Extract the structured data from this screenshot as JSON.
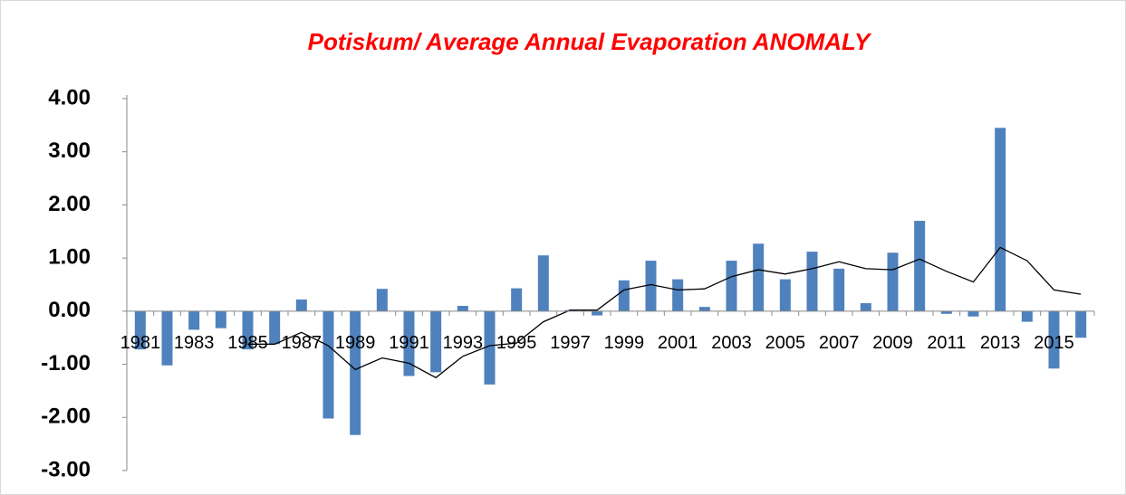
{
  "chart_data": {
    "type": "bar",
    "title": "Potiskum/ Average Annual Evaporation  ANOMALY",
    "categories": [
      "1981",
      null,
      "1983",
      null,
      "1985",
      null,
      "1987",
      null,
      "1989",
      null,
      "1991",
      null,
      "1993",
      null,
      "1995",
      null,
      "1997",
      null,
      "1999",
      null,
      "2001",
      null,
      "2003",
      null,
      "2005",
      null,
      "2007",
      null,
      "2009",
      null,
      "2011",
      null,
      "2013",
      null,
      "2015",
      null
    ],
    "series": [
      {
        "type": "bar",
        "color": "#4f81bd",
        "values": [
          -0.72,
          -1.02,
          -0.35,
          -0.32,
          -0.72,
          -0.62,
          0.22,
          -2.02,
          -2.33,
          0.42,
          -1.22,
          -1.15,
          0.1,
          -1.38,
          0.43,
          1.05,
          0.02,
          -0.08,
          0.58,
          0.95,
          0.6,
          0.08,
          0.95,
          1.27,
          0.6,
          1.12,
          0.8,
          0.15,
          1.1,
          1.7,
          -0.05,
          -0.1,
          3.45,
          -0.2,
          -1.08,
          -0.5
        ]
      },
      {
        "type": "line",
        "color": "#000000",
        "values": [
          null,
          null,
          null,
          null,
          -0.62,
          -0.62,
          -0.4,
          -0.65,
          -1.1,
          -0.88,
          -0.98,
          -1.25,
          -0.85,
          -0.65,
          -0.6,
          -0.2,
          0.02,
          0.02,
          0.4,
          0.5,
          0.4,
          0.42,
          0.65,
          0.78,
          0.7,
          0.8,
          0.93,
          0.8,
          0.78,
          0.98,
          0.75,
          0.55,
          1.2,
          0.95,
          0.4,
          0.32
        ]
      }
    ],
    "ylim": [
      -3,
      4
    ],
    "yticks": [
      {
        "value": -3,
        "label": "-3.00"
      },
      {
        "value": -2,
        "label": "-2.00"
      },
      {
        "value": -1,
        "label": "-1.00"
      },
      {
        "value": 0,
        "label": "0.00"
      },
      {
        "value": 1,
        "label": "1.00"
      },
      {
        "value": 2,
        "label": "2.00"
      },
      {
        "value": 3,
        "label": "3.00"
      },
      {
        "value": 4,
        "label": "4.00"
      }
    ],
    "grid": false
  }
}
